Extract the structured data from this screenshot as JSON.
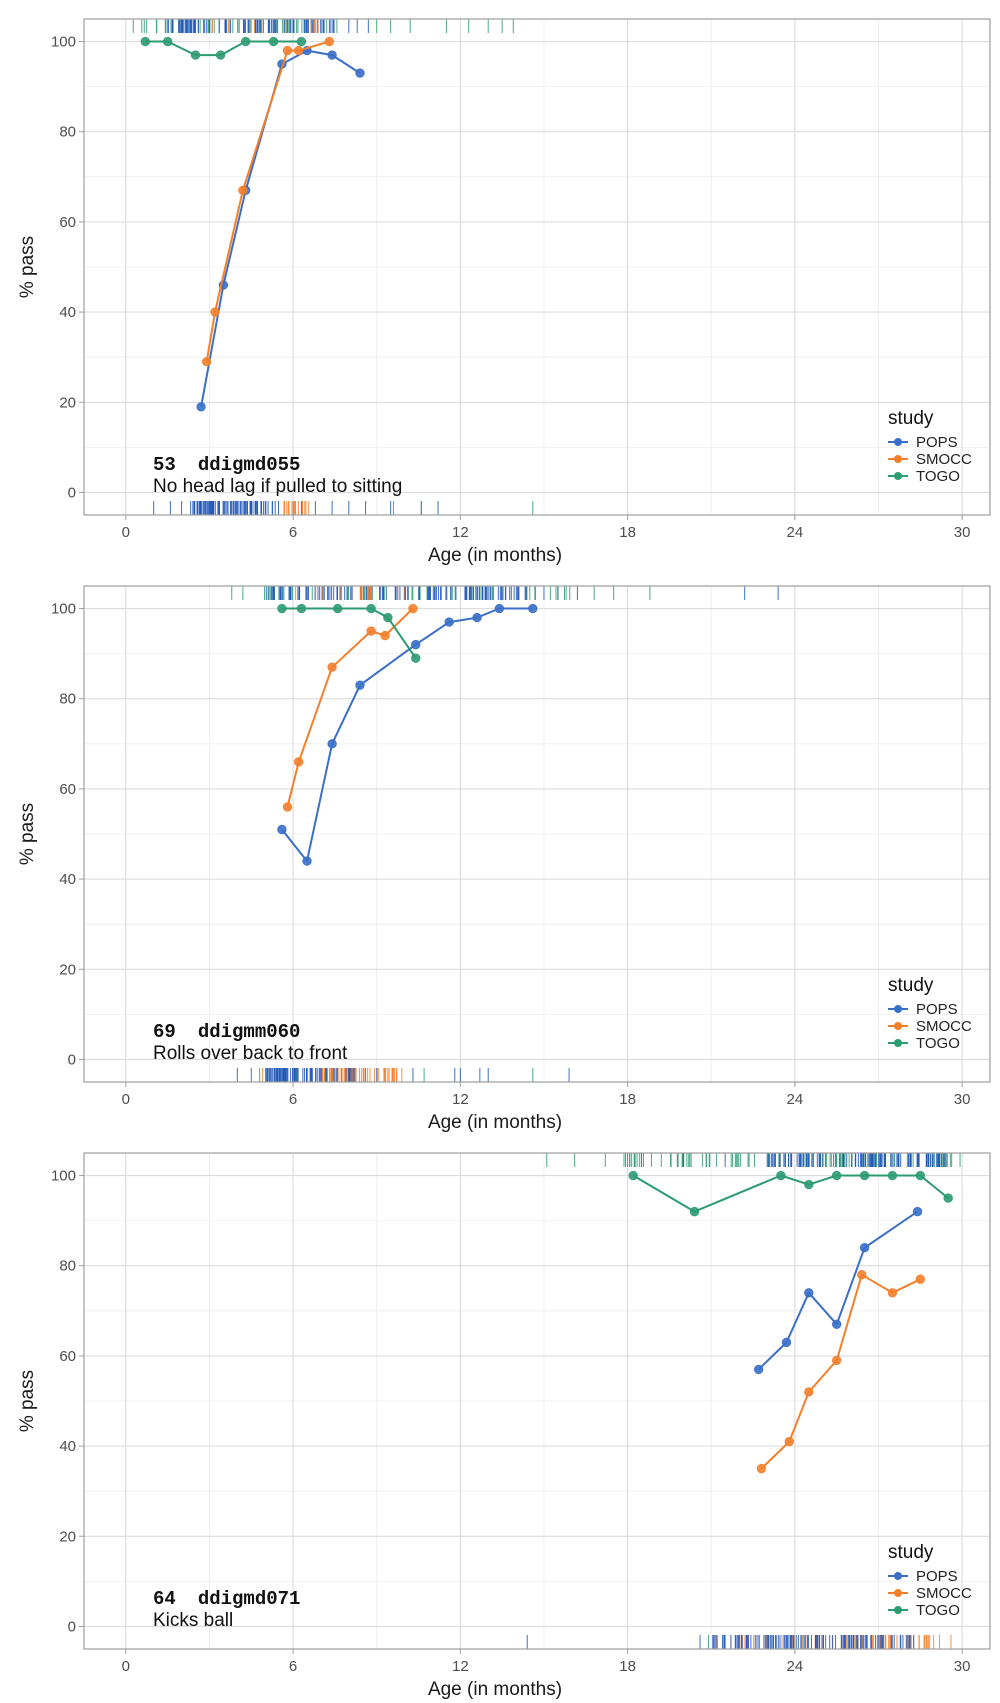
{
  "colors": {
    "POPS": "#3a6fc8",
    "SMOCC": "#f47f2b",
    "TOGO": "#2d9b72",
    "POPS_rug": "#1f56b8"
  },
  "chart_data": [
    {
      "type": "line",
      "number": "53",
      "code": "ddigmd055",
      "label": "No head lag if pulled to sitting",
      "xlabel": "Age (in months)",
      "ylabel": "% pass",
      "xlim": [
        -1.5,
        31.0
      ],
      "ylim": [
        -5,
        105
      ],
      "xticks": [
        0,
        6,
        12,
        18,
        24,
        30
      ],
      "yticks": [
        0,
        20,
        40,
        60,
        80,
        100
      ],
      "legend_title": "study",
      "legend_position": "bottom-right",
      "series": [
        {
          "name": "POPS",
          "x": [
            2.7,
            3.5,
            4.3,
            5.6,
            6.5,
            7.4,
            8.4
          ],
          "y": [
            19,
            46,
            67,
            95,
            98,
            97,
            93
          ]
        },
        {
          "name": "SMOCC",
          "x": [
            2.9,
            3.2,
            4.2,
            5.8,
            6.2,
            7.3
          ],
          "y": [
            29,
            40,
            67,
            98,
            98,
            100
          ]
        },
        {
          "name": "TOGO",
          "x": [
            0.7,
            1.5,
            2.5,
            3.4,
            4.3,
            5.3,
            6.3
          ],
          "y": [
            100,
            100,
            97,
            97,
            100,
            100,
            100
          ]
        }
      ],
      "rug_top": [
        {
          "name": "TOGO",
          "ranges": [
            [
              0.2,
              8.5
            ]
          ],
          "density": 55,
          "extra": [
            9.0,
            9.5,
            10.2,
            11.5,
            12.3,
            13.0,
            13.5,
            13.9
          ]
        },
        {
          "name": "POPS",
          "ranges": [
            [
              1.5,
              7.5
            ]
          ],
          "density": 90,
          "extra": [
            8.0,
            8.3,
            8.7
          ]
        },
        {
          "name": "SMOCC",
          "ranges": [
            [
              3.0,
              7.0
            ]
          ],
          "density": 10,
          "extra": []
        }
      ],
      "rug_bottom": [
        {
          "name": "POPS",
          "ranges": [
            [
              2.3,
              5.5
            ]
          ],
          "density": 95,
          "extra": [
            1.0,
            1.6,
            2.0,
            6.3,
            6.8,
            7.4,
            8.0,
            8.6,
            9.5,
            10.6,
            11.2
          ]
        },
        {
          "name": "SMOCC",
          "ranges": [
            [
              5.6,
              6.6
            ]
          ],
          "density": 20,
          "extra": []
        },
        {
          "name": "TOGO",
          "ranges": [],
          "density": 0,
          "extra": [
            9.6,
            10.6,
            14.6
          ]
        }
      ]
    },
    {
      "type": "line",
      "number": "69",
      "code": "ddigmm060",
      "label": "Rolls over back to front",
      "xlabel": "Age (in months)",
      "ylabel": "% pass",
      "xlim": [
        -1.5,
        31.0
      ],
      "ylim": [
        -5,
        105
      ],
      "xticks": [
        0,
        6,
        12,
        18,
        24,
        30
      ],
      "yticks": [
        0,
        20,
        40,
        60,
        80,
        100
      ],
      "legend_title": "study",
      "legend_position": "bottom-right",
      "series": [
        {
          "name": "POPS",
          "x": [
            5.6,
            6.5,
            7.4,
            8.4,
            10.4,
            11.6,
            12.6,
            13.4,
            14.6
          ],
          "y": [
            51,
            44,
            70,
            83,
            92,
            97,
            98,
            100,
            100
          ]
        },
        {
          "name": "SMOCC",
          "x": [
            5.8,
            6.2,
            7.4,
            8.8,
            9.3,
            10.3
          ],
          "y": [
            56,
            66,
            87,
            95,
            94,
            100
          ]
        },
        {
          "name": "TOGO",
          "x": [
            5.6,
            6.3,
            7.6,
            8.8,
            9.4,
            10.4
          ],
          "y": [
            100,
            100,
            100,
            100,
            98,
            89
          ]
        }
      ],
      "rug_top": [
        {
          "name": "TOGO",
          "ranges": [
            [
              4.8,
              16.0
            ]
          ],
          "density": 45,
          "extra": [
            3.8,
            4.2,
            16.8,
            17.5,
            18.8
          ]
        },
        {
          "name": "POPS",
          "ranges": [
            [
              5.0,
              14.5
            ]
          ],
          "density": 130,
          "extra": [
            15.0,
            15.5,
            16.2,
            22.2,
            23.4
          ]
        },
        {
          "name": "SMOCC",
          "ranges": [
            [
              6.0,
              10.5
            ]
          ],
          "density": 12,
          "extra": []
        }
      ],
      "rug_bottom": [
        {
          "name": "POPS",
          "ranges": [
            [
              5.0,
              8.2
            ]
          ],
          "density": 110,
          "extra": [
            4.0,
            4.5,
            8.6,
            9.0,
            10.3,
            11.8,
            12.0,
            12.7,
            13.0,
            15.9
          ]
        },
        {
          "name": "SMOCC",
          "ranges": [
            [
              7.0,
              9.8
            ]
          ],
          "density": 45,
          "extra": [
            4.9,
            5.3,
            9.9
          ]
        },
        {
          "name": "TOGO",
          "ranges": [],
          "density": 0,
          "extra": [
            4.8,
            6.1,
            10.7,
            14.6
          ]
        }
      ]
    },
    {
      "type": "line",
      "number": "64",
      "code": "ddigmd071",
      "label": "Kicks ball",
      "xlabel": "Age (in months)",
      "ylabel": "% pass",
      "xlim": [
        -1.5,
        31.0
      ],
      "ylim": [
        -5,
        105
      ],
      "xticks": [
        0,
        6,
        12,
        18,
        24,
        30
      ],
      "yticks": [
        0,
        20,
        40,
        60,
        80,
        100
      ],
      "legend_title": "study",
      "legend_position": "bottom-right",
      "series": [
        {
          "name": "POPS",
          "x": [
            22.7,
            23.7,
            24.5,
            25.5,
            26.5,
            28.4
          ],
          "y": [
            57,
            63,
            74,
            67,
            84,
            92
          ]
        },
        {
          "name": "SMOCC",
          "x": [
            22.8,
            23.8,
            24.5,
            25.5,
            26.4,
            27.5,
            28.5
          ],
          "y": [
            35,
            41,
            52,
            59,
            78,
            74,
            77
          ]
        },
        {
          "name": "TOGO",
          "x": [
            18.2,
            20.4,
            23.5,
            24.5,
            25.5,
            26.5,
            27.5,
            28.5,
            29.5
          ],
          "y": [
            100,
            92,
            100,
            98,
            100,
            100,
            100,
            100,
            95
          ]
        }
      ],
      "rug_top": [
        {
          "name": "TOGO",
          "ranges": [
            [
              17.8,
              30.0
            ]
          ],
          "density": 110,
          "extra": [
            15.1,
            16.1,
            17.2
          ]
        },
        {
          "name": "POPS",
          "ranges": [
            [
              23.0,
              29.5
            ]
          ],
          "density": 110,
          "extra": [
            18.5,
            20.0,
            21.5
          ]
        },
        {
          "name": "SMOCC",
          "ranges": [],
          "density": 0,
          "extra": []
        }
      ],
      "rug_bottom": [
        {
          "name": "SMOCC",
          "ranges": [
            [
              21.0,
              29.2
            ]
          ],
          "density": 70,
          "extra": [
            29.6
          ]
        },
        {
          "name": "POPS",
          "ranges": [
            [
              21.0,
              28.5
            ]
          ],
          "density": 120,
          "extra": [
            20.6,
            14.4
          ]
        },
        {
          "name": "TOGO",
          "ranges": [],
          "density": 0,
          "extra": [
            20.9,
            24.3
          ]
        }
      ]
    }
  ]
}
